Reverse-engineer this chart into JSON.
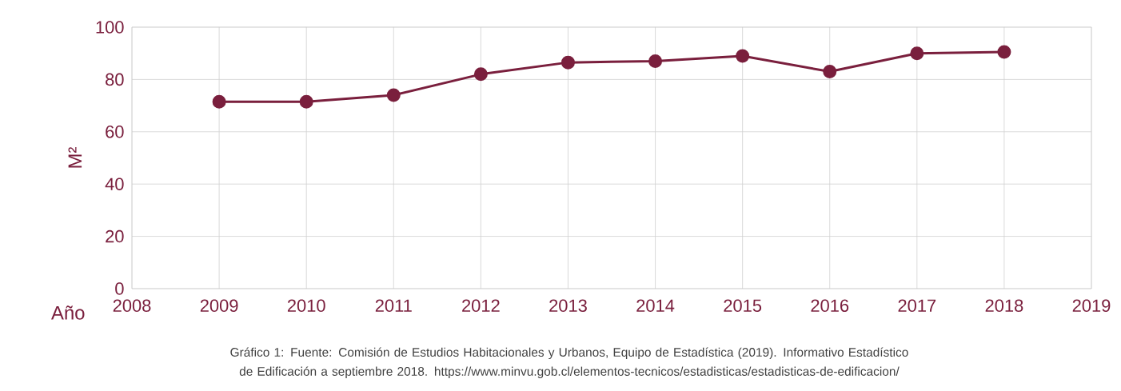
{
  "chart_data": {
    "type": "line",
    "xlabel": "Año",
    "ylabel": "M²",
    "x": [
      2009,
      2010,
      2011,
      2012,
      2013,
      2014,
      2015,
      2016,
      2017,
      2018
    ],
    "series": [
      {
        "color": "#7a1f3d",
        "values": [
          71.5,
          71.5,
          74,
          82,
          86.5,
          87,
          89,
          83,
          90,
          90.5
        ]
      }
    ],
    "xlim": [
      2008,
      2019
    ],
    "xticks": [
      2008,
      2009,
      2010,
      2011,
      2012,
      2013,
      2014,
      2015,
      2016,
      2017,
      2018,
      2019
    ],
    "ylim": [
      0,
      100
    ],
    "yticks": [
      0,
      20,
      40,
      60,
      80,
      100
    ],
    "grid": true,
    "marker": "circle",
    "line_style": "solid",
    "annotations": [
      "Gráfico 1: Fuente: Comisión de Estudios Habitacionales y Urbanos, Equipo de Estadística (2019). Informativo Estadístico de Edificación a septiembre 2018. https://www.minvu.gob.cl/elementos-tecnicos/estadisticas/estadisticas-de-edificacion/"
    ]
  }
}
